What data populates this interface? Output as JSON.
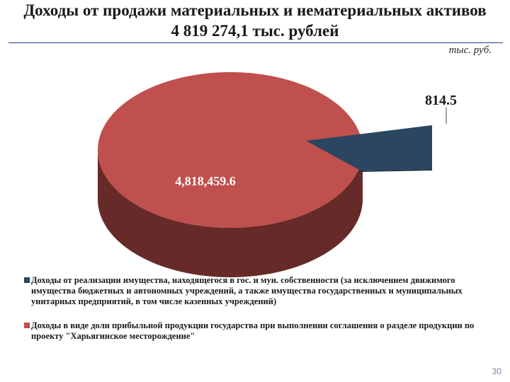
{
  "header": {
    "title_line1": "Доходы от продажи материальных и нематериальных активов",
    "title_line2": "4 819 274,1 тыс. рублей",
    "unit": "тыс. руб."
  },
  "chart_data": {
    "type": "pie",
    "style": "3d-exploded",
    "slices": [
      {
        "name": "Доходы от реализации имущества, находящегося в гос. и мун. собственности (за исключением движимого имущества бюджетных и автономных учреждений, а также имущества государственных и муниципальных унитарных предприятий, в том числе казенных учреждений)",
        "value": 814.5,
        "label": "814.5",
        "color": "#2b4660",
        "side_color": "#1d3148"
      },
      {
        "name": "Доходы в виде доли прибыльной продукции государства при выполнении соглашения о разделе продукции по проекту \"Харьягинское месторождение\"",
        "value": 4818459.6,
        "label": "4,818,459.6",
        "color": "#c0504d",
        "side_color": "#662a28"
      }
    ],
    "legend_position": "bottom"
  },
  "footer": {
    "page_number": "30"
  }
}
